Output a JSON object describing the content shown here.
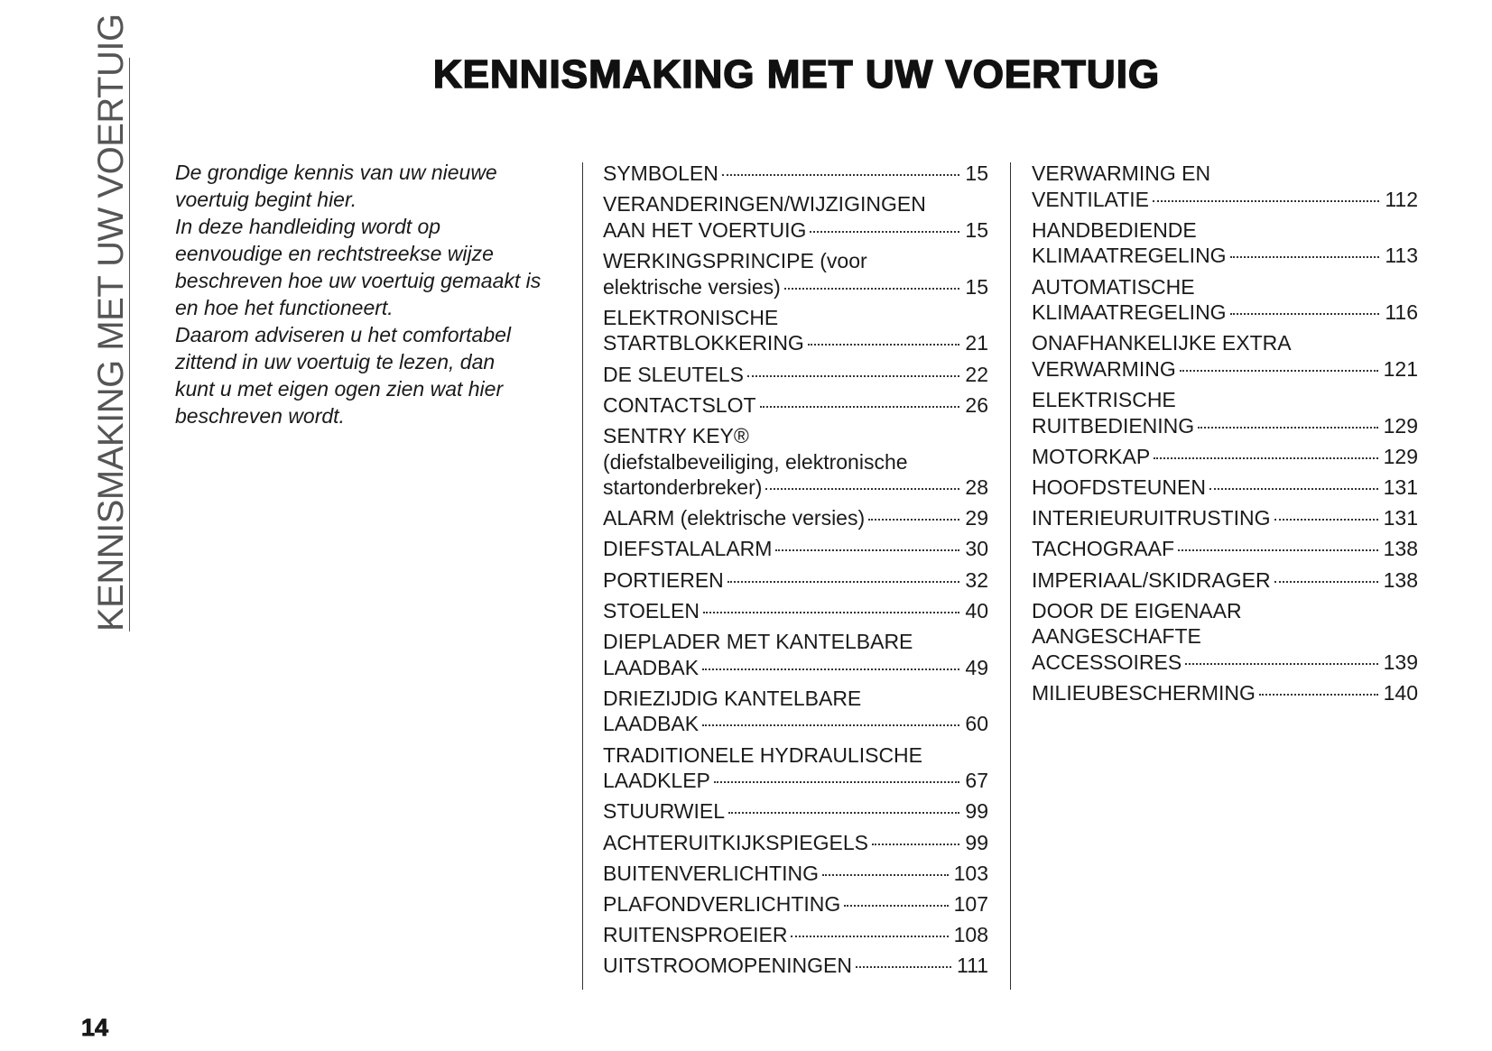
{
  "sidebar": "KENNISMAKING MET UW VOERTUIG",
  "title": "KENNISMAKING MET UW VOERTUIG",
  "intro": {
    "paragraphs": [
      [
        "De grondige kennis van uw nieuwe",
        "voertuig begint hier."
      ],
      [
        "In deze handleiding wordt op",
        "eenvoudige en rechtstreekse wijze",
        "beschreven hoe uw voertuig gemaakt is",
        "en hoe het functioneert."
      ],
      [
        "Daarom adviseren u het comfortabel",
        "zittend in uw voertuig te lezen, dan",
        "kunt u met eigen ogen zien wat hier",
        "beschreven wordt."
      ]
    ]
  },
  "toc": {
    "columns": [
      [
        {
          "lines": [
            "SYMBOLEN"
          ],
          "page": "15"
        },
        {
          "lines": [
            "VERANDERINGEN/WIJZIGINGEN",
            "AAN HET VOERTUIG"
          ],
          "page": "15"
        },
        {
          "lines": [
            "WERKINGSPRINCIPE (voor",
            "elektrische versies)"
          ],
          "page": "15"
        },
        {
          "lines": [
            "ELEKTRONISCHE",
            "STARTBLOKKERING"
          ],
          "page": "21"
        },
        {
          "lines": [
            "DE SLEUTELS"
          ],
          "page": "22"
        },
        {
          "lines": [
            "CONTACTSLOT"
          ],
          "page": "26"
        },
        {
          "lines": [
            "SENTRY KEY®",
            "(diefstalbeveiliging, elektronische",
            "startonderbreker)"
          ],
          "page": "28"
        },
        {
          "lines": [
            "ALARM (elektrische versies)"
          ],
          "page": "29"
        },
        {
          "lines": [
            "DIEFSTALALARM"
          ],
          "page": "30"
        },
        {
          "lines": [
            "PORTIEREN"
          ],
          "page": "32"
        },
        {
          "lines": [
            "STOELEN"
          ],
          "page": "40"
        },
        {
          "lines": [
            "DIEPLADER MET KANTELBARE",
            "LAADBAK"
          ],
          "page": "49"
        },
        {
          "lines": [
            "DRIEZIJDIG KANTELBARE",
            "LAADBAK"
          ],
          "page": "60"
        },
        {
          "lines": [
            "TRADITIONELE HYDRAULISCHE",
            "LAADKLEP"
          ],
          "page": "67"
        },
        {
          "lines": [
            "STUURWIEL"
          ],
          "page": "99"
        },
        {
          "lines": [
            "ACHTERUITKIJKSPIEGELS"
          ],
          "page": "99"
        },
        {
          "lines": [
            "BUITENVERLICHTING"
          ],
          "page": "103"
        },
        {
          "lines": [
            "PLAFONDVERLICHTING"
          ],
          "page": "107"
        },
        {
          "lines": [
            "RUITENSPROEIER"
          ],
          "page": "108"
        },
        {
          "lines": [
            "UITSTROOMOPENINGEN"
          ],
          "page": "111"
        }
      ],
      [
        {
          "lines": [
            "VERWARMING EN",
            "VENTILATIE"
          ],
          "page": "112"
        },
        {
          "lines": [
            "HANDBEDIENDE",
            "KLIMAATREGELING"
          ],
          "page": "113"
        },
        {
          "lines": [
            "AUTOMATISCHE",
            "KLIMAATREGELING"
          ],
          "page": "116"
        },
        {
          "lines": [
            "ONAFHANKELIJKE EXTRA",
            "VERWARMING"
          ],
          "page": "121"
        },
        {
          "lines": [
            "ELEKTRISCHE",
            "RUITBEDIENING"
          ],
          "page": "129"
        },
        {
          "lines": [
            "MOTORKAP"
          ],
          "page": "129"
        },
        {
          "lines": [
            "HOOFDSTEUNEN"
          ],
          "page": "131"
        },
        {
          "lines": [
            "INTERIEURUITRUSTING"
          ],
          "page": "131"
        },
        {
          "lines": [
            "TACHOGRAAF"
          ],
          "page": "138"
        },
        {
          "lines": [
            "IMPERIAAL/SKIDRAGER"
          ],
          "page": "138"
        },
        {
          "lines": [
            "DOOR DE EIGENAAR",
            "AANGESCHAFTE",
            "ACCESSOIRES"
          ],
          "page": "139"
        },
        {
          "lines": [
            "MILIEUBESCHERMING"
          ],
          "page": "140"
        }
      ]
    ]
  },
  "page_number": "14"
}
